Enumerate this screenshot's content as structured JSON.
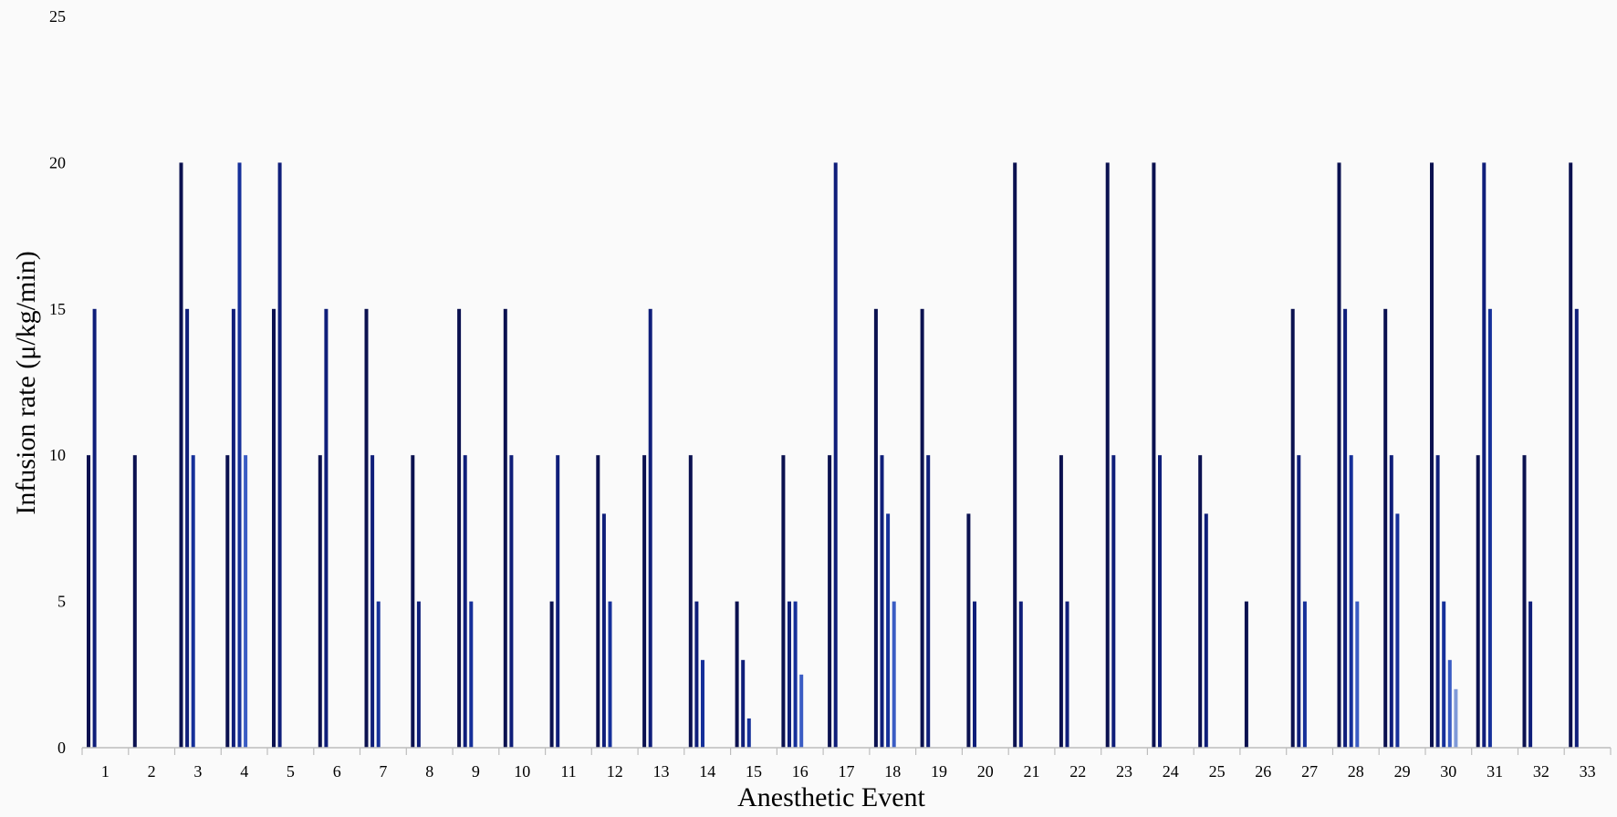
{
  "chart_data": {
    "type": "bar",
    "xlabel": "Anesthetic Event",
    "ylabel": "Infusion rate (μ/kg/min)",
    "ylim": [
      0,
      25
    ],
    "yticks": [
      0,
      5,
      10,
      15,
      20,
      25
    ],
    "grid": false,
    "colors": [
      "#0b1150",
      "#0f1e7a",
      "#16309a",
      "#3a5cc4",
      "#7f9ad8"
    ],
    "categories": [
      "1",
      "2",
      "3",
      "4",
      "5",
      "6",
      "7",
      "8",
      "9",
      "10",
      "11",
      "12",
      "13",
      "14",
      "15",
      "16",
      "17",
      "18",
      "19",
      "20",
      "21",
      "22",
      "23",
      "24",
      "25",
      "26",
      "27",
      "28",
      "29",
      "30",
      "31",
      "32",
      "33"
    ],
    "events": [
      [
        10,
        15
      ],
      [
        10
      ],
      [
        20,
        15,
        10
      ],
      [
        10,
        15,
        20,
        10
      ],
      [
        15,
        20
      ],
      [
        10,
        15
      ],
      [
        15,
        10,
        5
      ],
      [
        10,
        5
      ],
      [
        15,
        10,
        5
      ],
      [
        15,
        10
      ],
      [
        5,
        10
      ],
      [
        10,
        8,
        5
      ],
      [
        10,
        15
      ],
      [
        10,
        5,
        3
      ],
      [
        5,
        3,
        1
      ],
      [
        10,
        5,
        5,
        2.5
      ],
      [
        10,
        20
      ],
      [
        15,
        10,
        8,
        5
      ],
      [
        15,
        10
      ],
      [
        8,
        5
      ],
      [
        20,
        5
      ],
      [
        10,
        5
      ],
      [
        20,
        10
      ],
      [
        20,
        10
      ],
      [
        10,
        8
      ],
      [
        5
      ],
      [
        15,
        10,
        5
      ],
      [
        20,
        15,
        10,
        5
      ],
      [
        15,
        10,
        8
      ],
      [
        20,
        10,
        5,
        3,
        2
      ],
      [
        10,
        20,
        15
      ],
      [
        10,
        5
      ],
      [
        20,
        15
      ]
    ]
  }
}
